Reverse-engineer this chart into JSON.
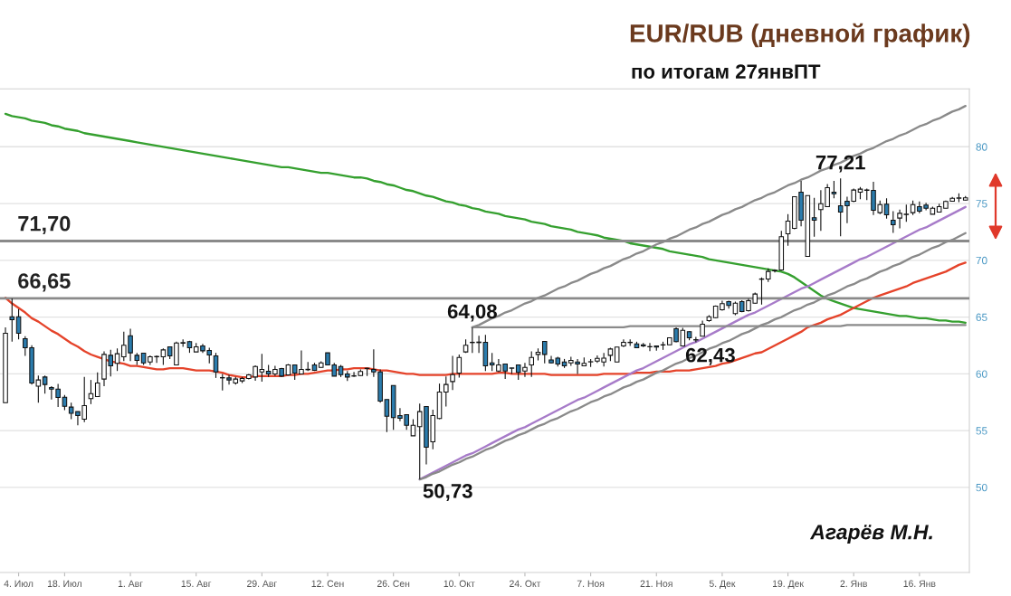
{
  "chart_data": {
    "type": "candlestick",
    "title": "EUR/RUB (дневной график)",
    "subtitle": "по итогам 27янвПТ",
    "categories": [
      null,
      null,
      "4. Июл",
      null,
      null,
      null,
      null,
      null,
      null,
      "18. Июл",
      null,
      null,
      null,
      null,
      null,
      null,
      null,
      null,
      null,
      "1. Авг",
      null,
      null,
      null,
      null,
      null,
      null,
      null,
      null,
      null,
      "15. Авг",
      null,
      null,
      null,
      null,
      null,
      null,
      null,
      null,
      null,
      "29. Авг",
      null,
      null,
      null,
      null,
      null,
      null,
      null,
      null,
      null,
      "12. Сен",
      null,
      null,
      null,
      null,
      null,
      null,
      null,
      null,
      null,
      "26. Сен",
      null,
      null,
      null,
      null,
      null,
      null,
      null,
      null,
      null,
      "10. Окт",
      null,
      null,
      null,
      null,
      null,
      null,
      null,
      null,
      null,
      "24. Окт",
      null,
      null,
      null,
      null,
      null,
      null,
      null,
      null,
      null,
      "7. Ноя",
      null,
      null,
      null,
      null,
      null,
      null,
      null,
      null,
      null,
      "21. Ноя",
      null,
      null,
      null,
      null,
      null,
      null,
      null,
      null,
      null,
      "5. Дек",
      null,
      null,
      null,
      null,
      null,
      null,
      null,
      null,
      null,
      "19. Дек",
      null,
      null,
      null,
      null,
      null,
      null,
      null,
      null,
      null,
      "2. Янв",
      null,
      null,
      null,
      null,
      null,
      null,
      null,
      null,
      null,
      "16. Янв",
      null,
      null,
      null,
      null,
      null,
      null,
      null
    ],
    "ohlc": [
      [
        57.46,
        64.1,
        57.46,
        63.57
      ],
      [
        65.03,
        66.65,
        62.83,
        64.77
      ],
      [
        65.03,
        65.7,
        63.04,
        63.57
      ],
      [
        63.09,
        63.31,
        61.58,
        62.3
      ],
      [
        62.3,
        62.51,
        59.06,
        59.19
      ],
      [
        58.92,
        59.85,
        57.46,
        59.46
      ],
      [
        59.72,
        59.85,
        58.26,
        59.06
      ],
      [
        58.79,
        58.92,
        57.73,
        58.66
      ],
      [
        58.66,
        59.11,
        57.07,
        57.91
      ],
      [
        57.94,
        58.13,
        56.8,
        57.14
      ],
      [
        57.07,
        57.46,
        56.0,
        56.53
      ],
      [
        56.67,
        56.67,
        55.47,
        56.32
      ],
      [
        56.0,
        59.72,
        55.74,
        57.2
      ],
      [
        57.81,
        59.46,
        57.33,
        58.26
      ],
      [
        57.99,
        60.12,
        57.99,
        59.19
      ],
      [
        59.54,
        61.98,
        58.92,
        61.71
      ],
      [
        61.63,
        62.11,
        59.77,
        60.7
      ],
      [
        60.92,
        62.24,
        60.25,
        61.77
      ],
      [
        61.5,
        63.71,
        61.13,
        62.51
      ],
      [
        63.36,
        63.97,
        61.13,
        61.85
      ],
      [
        61.63,
        61.85,
        60.78,
        61.18
      ],
      [
        61.82,
        61.82,
        60.78,
        60.97
      ],
      [
        61.05,
        61.63,
        60.78,
        61.5
      ],
      [
        61.5,
        61.63,
        60.97,
        61.53
      ],
      [
        61.5,
        62.24,
        60.78,
        62.11
      ],
      [
        62.38,
        62.38,
        61.31,
        61.58
      ],
      [
        60.78,
        62.83,
        60.78,
        62.72
      ],
      [
        62.7,
        63.04,
        62.38,
        62.75
      ],
      [
        62.83,
        62.91,
        61.85,
        62.3
      ],
      [
        61.93,
        62.72,
        61.93,
        62.38
      ],
      [
        62.46,
        62.64,
        61.85,
        62.03
      ],
      [
        62.06,
        62.3,
        60.92,
        61.66
      ],
      [
        61.58,
        61.85,
        59.64,
        60.17
      ],
      [
        59.67,
        59.99,
        58.53,
        59.64
      ],
      [
        59.64,
        59.91,
        59.06,
        59.46
      ],
      [
        59.19,
        59.72,
        59.06,
        59.54
      ],
      [
        59.38,
        59.72,
        59.19,
        59.59
      ],
      [
        59.59,
        59.99,
        59.5,
        59.91
      ],
      [
        59.72,
        60.75,
        59.4,
        60.65
      ],
      [
        60.17,
        61.77,
        59.32,
        60.38
      ],
      [
        60.23,
        60.78,
        59.72,
        59.99
      ],
      [
        59.99,
        60.7,
        59.8,
        60.38
      ],
      [
        60.46,
        60.52,
        59.72,
        59.8
      ],
      [
        59.91,
        60.86,
        59.85,
        60.78
      ],
      [
        60.78,
        60.78,
        59.46,
        60.07
      ],
      [
        59.99,
        62.06,
        59.99,
        60.38
      ],
      [
        60.36,
        61.05,
        60.25,
        60.4
      ],
      [
        60.78,
        60.97,
        60.25,
        60.31
      ],
      [
        60.57,
        61.1,
        60.52,
        60.97
      ],
      [
        61.85,
        61.85,
        60.78,
        60.78
      ],
      [
        60.78,
        60.97,
        59.8,
        59.8
      ],
      [
        60.65,
        60.78,
        59.72,
        59.93
      ],
      [
        59.99,
        60.25,
        59.38,
        59.72
      ],
      [
        59.8,
        60.17,
        59.72,
        59.83
      ],
      [
        59.85,
        60.38,
        59.8,
        60.2
      ],
      [
        60.46,
        60.52,
        59.8,
        60.49
      ],
      [
        60.38,
        62.16,
        59.72,
        60.17
      ],
      [
        60.17,
        60.38,
        57.46,
        57.6
      ],
      [
        57.73,
        57.73,
        54.86,
        56.27
      ],
      [
        58.98,
        58.98,
        55.07,
        56.14
      ],
      [
        56.32,
        56.99,
        55.82,
        56.08
      ],
      [
        56.4,
        56.4,
        55.07,
        55.47
      ],
      [
        54.54,
        56.0,
        54.54,
        55.47
      ],
      [
        55.34,
        57.38,
        50.73,
        56.67
      ],
      [
        57.12,
        57.12,
        52.02,
        53.53
      ],
      [
        54.01,
        56.85,
        53.35,
        56.32
      ],
      [
        56.06,
        59.14,
        56.0,
        58.39
      ],
      [
        58.39,
        59.77,
        57.12,
        59.06
      ],
      [
        59.32,
        61.58,
        58.58,
        59.93
      ],
      [
        60.07,
        61.71,
        59.67,
        61.45
      ],
      [
        61.93,
        63.04,
        61.85,
        62.51
      ],
      [
        62.75,
        64.08,
        61.85,
        62.78
      ],
      [
        62.8,
        63.36,
        61.85,
        62.75
      ],
      [
        62.78,
        63.44,
        60.25,
        60.7
      ],
      [
        60.97,
        61.85,
        60.25,
        60.78
      ],
      [
        60.25,
        61.31,
        60.17,
        60.78
      ],
      [
        60.86,
        60.86,
        59.54,
        60.25
      ],
      [
        60.52,
        60.52,
        59.99,
        60.49
      ],
      [
        60.78,
        60.78,
        59.46,
        60.12
      ],
      [
        60.25,
        60.97,
        59.72,
        60.57
      ],
      [
        60.78,
        61.98,
        59.72,
        61.45
      ],
      [
        61.71,
        62.24,
        61.18,
        61.9
      ],
      [
        62.86,
        62.86,
        60.92,
        61.71
      ],
      [
        61.23,
        61.58,
        60.92,
        60.97
      ],
      [
        61.39,
        61.5,
        60.65,
        60.86
      ],
      [
        61.05,
        61.31,
        60.52,
        60.7
      ],
      [
        60.97,
        61.5,
        60.7,
        61.18
      ],
      [
        61.05,
        61.31,
        59.99,
        60.86
      ],
      [
        60.7,
        61.45,
        60.7,
        60.92
      ],
      [
        61.05,
        61.31,
        60.6,
        61.07
      ],
      [
        61.13,
        61.63,
        60.97,
        61.37
      ],
      [
        61.05,
        61.85,
        60.65,
        61.39
      ],
      [
        61.63,
        62.3,
        61.13,
        62.19
      ],
      [
        61.05,
        62.35,
        61.05,
        62.35
      ],
      [
        62.46,
        63.04,
        62.35,
        62.78
      ],
      [
        62.75,
        63.04,
        62.46,
        62.78
      ],
      [
        62.64,
        62.83,
        62.3,
        62.3
      ],
      [
        62.56,
        62.72,
        62.35,
        62.46
      ],
      [
        62.4,
        62.72,
        62.0,
        62.38
      ],
      [
        62.46,
        62.46,
        62.03,
        62.35
      ],
      [
        62.54,
        62.83,
        62.11,
        62.56
      ],
      [
        62.56,
        63.17,
        62.56,
        63.17
      ],
      [
        63.97,
        64.1,
        62.78,
        62.83
      ],
      [
        62.45,
        64.05,
        62.43,
        63.84
      ],
      [
        63.71,
        63.76,
        62.96,
        63.17
      ],
      [
        62.98,
        63.25,
        62.78,
        63.01
      ],
      [
        63.31,
        64.69,
        63.31,
        64.37
      ],
      [
        64.69,
        65.17,
        64.58,
        65.03
      ],
      [
        64.95,
        66.02,
        64.9,
        65.96
      ],
      [
        65.64,
        66.44,
        65.56,
        66.18
      ],
      [
        66.36,
        66.44,
        65.75,
        66.02
      ],
      [
        65.3,
        66.36,
        65.17,
        66.23
      ],
      [
        66.36,
        66.49,
        65.43,
        65.48
      ],
      [
        65.56,
        66.63,
        65.48,
        66.44
      ],
      [
        66.23,
        67.16,
        66.18,
        67.03
      ],
      [
        68.33,
        68.49,
        66.1,
        68.36
      ],
      [
        68.35,
        69.28,
        68.09,
        69.02
      ],
      [
        69.07,
        69.2,
        68.94,
        69.12
      ],
      [
        69.15,
        72.6,
        69.1,
        72.07
      ],
      [
        72.34,
        74.06,
        71.28,
        73.45
      ],
      [
        72.81,
        75.6,
        72.74,
        75.6
      ],
      [
        76.0,
        76.99,
        73.0,
        73.53
      ],
      [
        70.35,
        75.71,
        70.35,
        75.71
      ],
      [
        73.75,
        75.5,
        72.07,
        73.53
      ],
      [
        74.46,
        76.19,
        72.6,
        74.99
      ],
      [
        74.73,
        76.72,
        74.73,
        76.4
      ],
      [
        76.0,
        76.99,
        75.47,
        75.87
      ],
      [
        74.81,
        77.21,
        72.12,
        74.25
      ],
      [
        75.21,
        75.6,
        73.27,
        74.81
      ],
      [
        75.21,
        76.32,
        75.13,
        76.19
      ],
      [
        76.0,
        76.45,
        75.39,
        76.27
      ],
      [
        76.16,
        76.32,
        75.31,
        76.19
      ],
      [
        76.16,
        76.91,
        73.98,
        74.41
      ],
      [
        74.2,
        75.26,
        74.06,
        74.91
      ],
      [
        74.94,
        75.47,
        73.67,
        74.01
      ],
      [
        73.53,
        74.33,
        72.42,
        73.13
      ],
      [
        73.72,
        74.46,
        72.81,
        74.14
      ],
      [
        74.04,
        74.91,
        73.4,
        74.06
      ],
      [
        74.2,
        75.26,
        73.98,
        74.91
      ],
      [
        74.73,
        75.18,
        74.14,
        74.33
      ],
      [
        74.86,
        75.07,
        74.41,
        74.59
      ],
      [
        74.06,
        74.73,
        74.06,
        74.59
      ],
      [
        74.25,
        74.99,
        74.2,
        74.73
      ],
      [
        74.59,
        75.26,
        74.59,
        75.18
      ],
      [
        75.21,
        75.58,
        75.21,
        75.47
      ],
      [
        75.47,
        75.9,
        75.13,
        75.5
      ],
      [
        75.31,
        75.66,
        75.26,
        75.5
      ]
    ],
    "colors": [
      "#ffffff",
      "#2b7cad",
      "#2b7cad",
      "#2b7cad",
      "#2b7cad",
      "#ffffff",
      "#2b7cad",
      "#2b7cad",
      "#2b7cad",
      "#2b7cad",
      "#2b7cad",
      "#2b7cad",
      "#ffffff",
      "#ffffff",
      "#ffffff",
      "#ffffff",
      "#2b7cad",
      "#ffffff",
      "#ffffff",
      "#2b7cad",
      "#2b7cad",
      "#2b7cad",
      "#ffffff",
      "#ffffff",
      "#ffffff",
      "#2b7cad",
      "#ffffff",
      "#ffffff",
      "#2b7cad",
      "#ffffff",
      "#2b7cad",
      "#2b7cad",
      "#2b7cad",
      "#2b7cad",
      "#2b7cad",
      "#ffffff",
      "#ffffff",
      "#ffffff",
      "#ffffff",
      "#ffffff",
      "#2b7cad",
      "#ffffff",
      "#2b7cad",
      "#ffffff",
      "#2b7cad",
      "#ffffff",
      "#ffffff",
      "#2b7cad",
      "#ffffff",
      "#2b7cad",
      "#2b7cad",
      "#2b7cad",
      "#2b7cad",
      "#ffffff",
      "#ffffff",
      "#ffffff",
      "#2b7cad",
      "#2b7cad",
      "#2b7cad",
      "#2b7cad",
      "#2b7cad",
      "#2b7cad",
      "#ffffff",
      "#ffffff",
      "#2b7cad",
      "#ffffff",
      "#ffffff",
      "#ffffff",
      "#ffffff",
      "#ffffff",
      "#ffffff",
      "#ffffff",
      "#2b7cad",
      "#2b7cad",
      "#2b7cad",
      "#ffffff",
      "#2b7cad",
      "#2b7cad",
      "#2b7cad",
      "#ffffff",
      "#ffffff",
      "#ffffff",
      "#2b7cad",
      "#2b7cad",
      "#2b7cad",
      "#2b7cad",
      "#ffffff",
      "#2b7cad",
      "#ffffff",
      "#ffffff",
      "#ffffff",
      "#ffffff",
      "#ffffff",
      "#ffffff",
      "#ffffff",
      "#ffffff",
      "#2b7cad",
      "#2b7cad",
      "#2b7cad",
      "#2b7cad",
      "#ffffff",
      "#ffffff",
      "#2b7cad",
      "#ffffff",
      "#2b7cad",
      "#ffffff",
      "#ffffff",
      "#ffffff",
      "#ffffff",
      "#ffffff",
      "#2b7cad",
      "#ffffff",
      "#2b7cad",
      "#ffffff",
      "#ffffff",
      "#ffffff",
      "#ffffff",
      "#ffffff",
      "#ffffff",
      "#ffffff",
      "#ffffff",
      "#2b7cad",
      "#ffffff",
      "#2b7cad",
      "#ffffff",
      "#ffffff",
      "#2b7cad",
      "#2b7cad",
      "#2b7cad",
      "#ffffff",
      "#ffffff",
      "#ffffff",
      "#2b7cad",
      "#ffffff",
      "#2b7cad",
      "#2b7cad",
      "#ffffff",
      "#ffffff",
      "#ffffff",
      "#2b7cad",
      "#2b7cad",
      "#ffffff",
      "#ffffff",
      "#ffffff",
      "#ffffff",
      "#ffffff",
      "#ffffff"
    ],
    "series": [
      {
        "type": "line",
        "color": "#35a02f",
        "values": [
          82.9,
          82.7,
          82.6,
          82.5,
          82.3,
          82.2,
          82.1,
          81.9,
          81.8,
          81.6,
          81.5,
          81.4,
          81.2,
          81.1,
          81.0,
          80.9,
          80.8,
          80.7,
          80.6,
          80.5,
          80.4,
          80.3,
          80.2,
          80.1,
          80.0,
          79.9,
          79.8,
          79.7,
          79.6,
          79.5,
          79.4,
          79.3,
          79.2,
          79.1,
          79.0,
          78.9,
          78.8,
          78.7,
          78.6,
          78.5,
          78.4,
          78.3,
          78.2,
          78.2,
          78.1,
          78.0,
          77.9,
          77.8,
          77.7,
          77.7,
          77.6,
          77.5,
          77.4,
          77.3,
          77.3,
          77.2,
          77.0,
          76.9,
          76.7,
          76.6,
          76.4,
          76.2,
          76.1,
          75.9,
          75.7,
          75.6,
          75.4,
          75.2,
          75.1,
          74.9,
          74.8,
          74.6,
          74.5,
          74.3,
          74.2,
          74.1,
          73.9,
          73.8,
          73.7,
          73.6,
          73.4,
          73.3,
          73.2,
          73.0,
          72.9,
          72.8,
          72.7,
          72.5,
          72.4,
          72.3,
          72.2,
          72.0,
          71.9,
          71.8,
          71.7,
          71.5,
          71.4,
          71.3,
          71.2,
          71.1,
          71.0,
          70.8,
          70.7,
          70.6,
          70.5,
          70.4,
          70.3,
          70.1,
          70.0,
          69.9,
          69.8,
          69.7,
          69.6,
          69.5,
          69.4,
          69.3,
          69.2,
          69.1,
          69.0,
          68.8,
          68.5,
          68.1,
          67.7,
          67.3,
          66.9,
          66.6,
          66.4,
          66.2,
          66.0,
          65.8,
          65.7,
          65.6,
          65.5,
          65.4,
          65.3,
          65.2,
          65.1,
          65.1,
          65.0,
          64.9,
          64.9,
          64.8,
          64.7,
          64.7,
          64.6,
          64.6,
          64.5
        ]
      },
      {
        "type": "line",
        "color": "#e5432a",
        "values": [
          66.7,
          66.2,
          65.8,
          65.4,
          64.9,
          64.6,
          64.2,
          63.8,
          63.5,
          63.1,
          62.7,
          62.4,
          62.0,
          61.7,
          61.5,
          61.3,
          61.1,
          61.0,
          60.9,
          60.7,
          60.7,
          60.6,
          60.5,
          60.4,
          60.4,
          60.5,
          60.5,
          60.5,
          60.4,
          60.3,
          60.3,
          60.3,
          60.2,
          60.1,
          59.9,
          59.8,
          59.7,
          59.7,
          59.8,
          59.8,
          59.8,
          59.8,
          59.8,
          59.9,
          59.9,
          60.0,
          60.0,
          60.1,
          60.2,
          60.3,
          60.3,
          60.4,
          60.4,
          60.5,
          60.5,
          60.5,
          60.4,
          60.3,
          60.3,
          60.2,
          60.1,
          60.0,
          60.0,
          59.9,
          59.9,
          59.9,
          59.9,
          59.9,
          60.0,
          60.0,
          60.0,
          60.0,
          60.0,
          60.0,
          60.0,
          60.1,
          60.1,
          60.0,
          60.0,
          60.0,
          60.0,
          60.0,
          60.0,
          59.9,
          59.9,
          59.9,
          59.9,
          59.9,
          59.9,
          59.9,
          59.9,
          60.0,
          60.0,
          60.0,
          60.0,
          60.0,
          60.1,
          60.1,
          60.1,
          60.2,
          60.2,
          60.2,
          60.3,
          60.3,
          60.3,
          60.4,
          60.5,
          60.6,
          60.7,
          60.9,
          61.0,
          61.2,
          61.4,
          61.6,
          61.8,
          61.9,
          62.2,
          62.5,
          62.8,
          63.1,
          63.4,
          63.7,
          64.1,
          64.3,
          64.5,
          64.8,
          65.0,
          65.2,
          65.5,
          65.8,
          66.1,
          66.4,
          66.7,
          66.9,
          67.1,
          67.3,
          67.5,
          67.7,
          68.0,
          68.2,
          68.4,
          68.6,
          68.8,
          69.0,
          69.3,
          69.6,
          69.8
        ]
      },
      {
        "type": "line",
        "color": "#a77bc9",
        "values": [
          null,
          null,
          null,
          null,
          null,
          null,
          null,
          null,
          null,
          null,
          null,
          null,
          null,
          null,
          null,
          null,
          null,
          null,
          null,
          null,
          null,
          null,
          null,
          null,
          null,
          null,
          null,
          null,
          null,
          null,
          null,
          null,
          null,
          null,
          null,
          null,
          null,
          null,
          null,
          null,
          null,
          null,
          null,
          null,
          null,
          null,
          null,
          null,
          null,
          null,
          null,
          null,
          null,
          null,
          null,
          null,
          null,
          null,
          null,
          null,
          null,
          null,
          null,
          50.7,
          51.0,
          51.3,
          51.6,
          51.9,
          52.2,
          52.5,
          52.8,
          53.0,
          53.3,
          53.6,
          53.9,
          54.2,
          54.5,
          54.8,
          55.1,
          55.3,
          55.6,
          55.9,
          56.2,
          56.5,
          56.8,
          57.1,
          57.4,
          57.7,
          57.9,
          58.2,
          58.5,
          58.8,
          59.1,
          59.4,
          59.7,
          60.0,
          60.3,
          60.5,
          60.8,
          61.1,
          61.4,
          61.7,
          62.0,
          62.3,
          62.6,
          62.8,
          63.1,
          63.4,
          63.7,
          64.0,
          64.3,
          64.6,
          64.9,
          65.2,
          65.4,
          65.7,
          66.0,
          66.3,
          66.6,
          66.9,
          67.2,
          67.5,
          67.7,
          68.0,
          68.3,
          68.6,
          68.9,
          69.2,
          69.5,
          69.8,
          70.1,
          70.3,
          70.6,
          70.9,
          71.2,
          71.5,
          71.8,
          72.1,
          72.4,
          72.7,
          72.9,
          73.2,
          73.5,
          73.8,
          74.1,
          74.4,
          74.7
        ]
      },
      {
        "type": "line",
        "color": "#8a8a8a",
        "values": [
          null,
          null,
          null,
          null,
          null,
          null,
          null,
          null,
          null,
          null,
          null,
          null,
          null,
          null,
          null,
          null,
          null,
          null,
          null,
          null,
          null,
          null,
          null,
          null,
          null,
          null,
          null,
          null,
          null,
          null,
          null,
          null,
          null,
          null,
          null,
          null,
          null,
          null,
          null,
          null,
          null,
          null,
          null,
          null,
          null,
          null,
          null,
          null,
          null,
          null,
          null,
          null,
          null,
          null,
          null,
          null,
          null,
          null,
          null,
          null,
          null,
          null,
          null,
          50.7,
          50.9,
          51.2,
          51.4,
          51.7,
          52.0,
          52.2,
          52.5,
          52.7,
          53.0,
          53.3,
          53.5,
          53.8,
          54.1,
          54.3,
          54.6,
          54.8,
          55.1,
          55.4,
          55.6,
          55.9,
          56.1,
          56.4,
          56.7,
          56.9,
          57.2,
          57.5,
          57.7,
          58.0,
          58.2,
          58.5,
          58.8,
          59.0,
          59.3,
          59.5,
          59.8,
          60.1,
          60.3,
          60.6,
          60.9,
          61.1,
          61.4,
          61.6,
          61.9,
          62.2,
          62.4,
          62.7,
          62.9,
          63.2,
          63.5,
          63.7,
          64.0,
          64.3,
          64.5,
          64.8,
          65.0,
          65.3,
          65.6,
          65.8,
          66.1,
          66.3,
          66.6,
          66.9,
          67.1,
          67.4,
          67.7,
          67.9,
          68.2,
          68.4,
          68.7,
          69.0,
          69.2,
          69.5,
          69.7,
          70.0,
          70.3,
          70.5,
          70.8,
          71.1,
          71.3,
          71.6,
          71.8,
          72.1,
          72.4
        ]
      },
      {
        "type": "line",
        "color": "#8a8a8a",
        "values": [
          null,
          null,
          null,
          null,
          null,
          null,
          null,
          null,
          null,
          null,
          null,
          null,
          null,
          null,
          null,
          null,
          null,
          null,
          null,
          null,
          null,
          null,
          null,
          null,
          null,
          null,
          null,
          null,
          null,
          null,
          null,
          null,
          null,
          null,
          null,
          null,
          null,
          null,
          null,
          null,
          null,
          null,
          null,
          null,
          null,
          null,
          null,
          null,
          null,
          null,
          null,
          null,
          null,
          null,
          null,
          null,
          null,
          null,
          null,
          null,
          null,
          null,
          null,
          null,
          null,
          null,
          null,
          null,
          null,
          null,
          null,
          64.1,
          64.3,
          64.6,
          64.9,
          65.1,
          65.4,
          65.6,
          65.9,
          66.2,
          66.4,
          66.7,
          66.9,
          67.2,
          67.5,
          67.7,
          68.0,
          68.2,
          68.5,
          68.8,
          69.0,
          69.3,
          69.5,
          69.8,
          70.1,
          70.3,
          70.6,
          70.8,
          71.1,
          71.4,
          71.6,
          71.9,
          72.1,
          72.4,
          72.7,
          72.9,
          73.2,
          73.4,
          73.7,
          74.0,
          74.2,
          74.5,
          74.7,
          75.0,
          75.3,
          75.5,
          75.8,
          76.0,
          76.3,
          76.6,
          76.8,
          77.1,
          77.3,
          77.6,
          77.9,
          78.1,
          78.4,
          78.6,
          78.9,
          79.2,
          79.4,
          79.7,
          79.9,
          80.2,
          80.5,
          80.7,
          81.0,
          81.2,
          81.5,
          81.8,
          82.0,
          82.3,
          82.5,
          82.8,
          83.1,
          83.3,
          83.6
        ]
      },
      {
        "type": "line",
        "color": "#8a8a8a",
        "values": [
          null,
          null,
          null,
          null,
          null,
          null,
          null,
          null,
          null,
          null,
          null,
          null,
          null,
          null,
          null,
          null,
          null,
          null,
          null,
          null,
          null,
          null,
          null,
          null,
          null,
          null,
          null,
          null,
          null,
          null,
          null,
          null,
          null,
          null,
          null,
          null,
          null,
          null,
          null,
          null,
          null,
          null,
          null,
          null,
          null,
          null,
          null,
          null,
          null,
          null,
          null,
          null,
          null,
          null,
          null,
          null,
          null,
          null,
          null,
          null,
          null,
          null,
          null,
          null,
          null,
          null,
          null,
          null,
          null,
          null,
          null,
          64.1,
          64.1,
          64.1,
          64.1,
          64.1,
          64.1,
          64.1,
          64.1,
          64.1,
          64.1,
          64.1,
          64.1,
          64.1,
          64.1,
          64.1,
          64.1,
          64.1,
          64.1,
          64.1,
          64.1,
          64.1,
          64.1,
          64.1,
          64.1,
          64.2,
          64.2,
          64.2,
          64.2,
          64.2,
          64.2,
          64.2,
          64.2,
          64.2,
          64.2,
          64.2,
          64.2,
          64.2,
          64.2,
          64.2,
          64.2,
          64.2,
          64.2,
          64.2,
          64.2,
          64.2,
          64.2,
          64.2,
          64.2,
          64.2,
          64.2,
          64.2,
          64.2,
          64.2,
          64.2,
          64.2,
          64.2,
          64.2,
          64.3,
          64.3,
          64.3,
          64.3,
          64.3,
          64.3,
          64.3,
          64.3,
          64.3,
          64.3,
          64.3,
          64.3,
          64.3,
          64.3,
          64.3,
          64.3,
          64.3,
          64.3,
          64.3
        ]
      }
    ],
    "ylim": [
      42.5,
      85.1
    ],
    "yticks": [
      50,
      55,
      60,
      65,
      70,
      75,
      80
    ],
    "grid": "y",
    "ref_lines": [
      {
        "axis": "y",
        "value": 71.7,
        "label": "71,70",
        "color": "#8a8a8a"
      },
      {
        "axis": "y",
        "value": 66.65,
        "label": "66,65",
        "color": "#8a8a8a"
      }
    ],
    "annotations": [
      {
        "text": "64,08",
        "y": 64.08
      },
      "50,73",
      {
        "text": "62,43",
        "y": 62.43
      },
      {
        "text": "77,21",
        "y": 77.21
      },
      "Агарёв М.Н."
    ]
  }
}
